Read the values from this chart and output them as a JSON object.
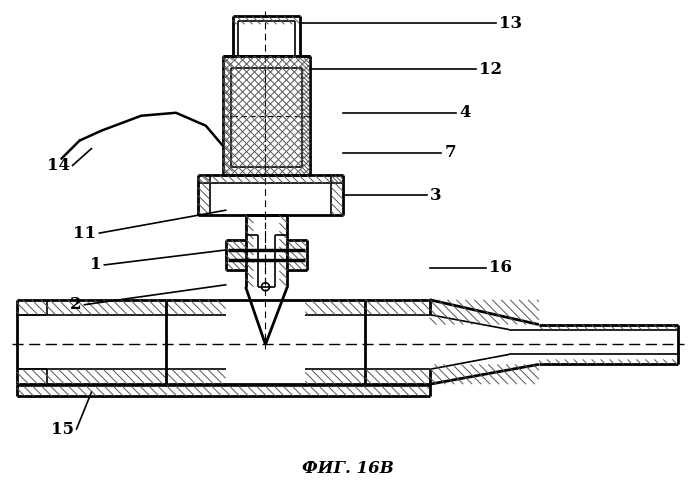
{
  "title": "ФИГ. 16В",
  "title_fontsize": 12,
  "background_color": "#ffffff",
  "line_color": "#000000",
  "label_fontsize": 12,
  "lw_main": 2.0,
  "lw_thin": 1.2,
  "lw_hatch": 0.7
}
